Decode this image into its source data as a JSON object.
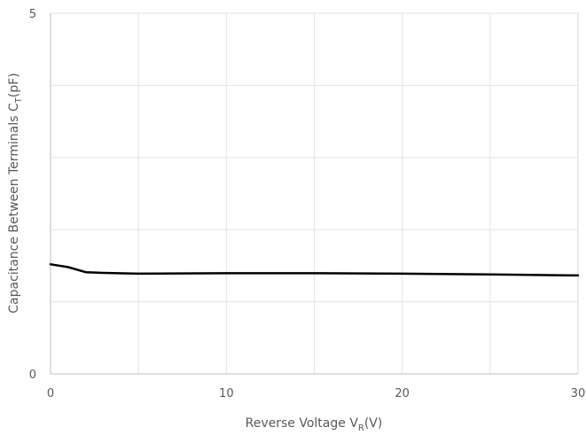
{
  "chart_data": {
    "type": "line",
    "title": "",
    "xlabel": "Reverse Voltage V",
    "xlabel_subscript": "R",
    "xlabel_suffix": "(V)",
    "ylabel": "Capacitance Between Terminals C",
    "ylabel_subscript": "T",
    "ylabel_suffix": "(pF)",
    "xlim": [
      0,
      30
    ],
    "ylim": [
      0,
      5
    ],
    "xticks": [
      0,
      10,
      20,
      30
    ],
    "yticks": [
      0,
      5
    ],
    "grid": {
      "vertical_lines": [
        5,
        10,
        15,
        20,
        25
      ],
      "horizontal_lines": [
        1,
        2,
        3,
        4
      ]
    },
    "series": [
      {
        "color": "#000000",
        "x": [
          0,
          1,
          2,
          3,
          5,
          10,
          15,
          20,
          25,
          30
        ],
        "y": [
          1.52,
          1.48,
          1.41,
          1.4,
          1.39,
          1.395,
          1.395,
          1.39,
          1.38,
          1.365
        ]
      }
    ]
  }
}
